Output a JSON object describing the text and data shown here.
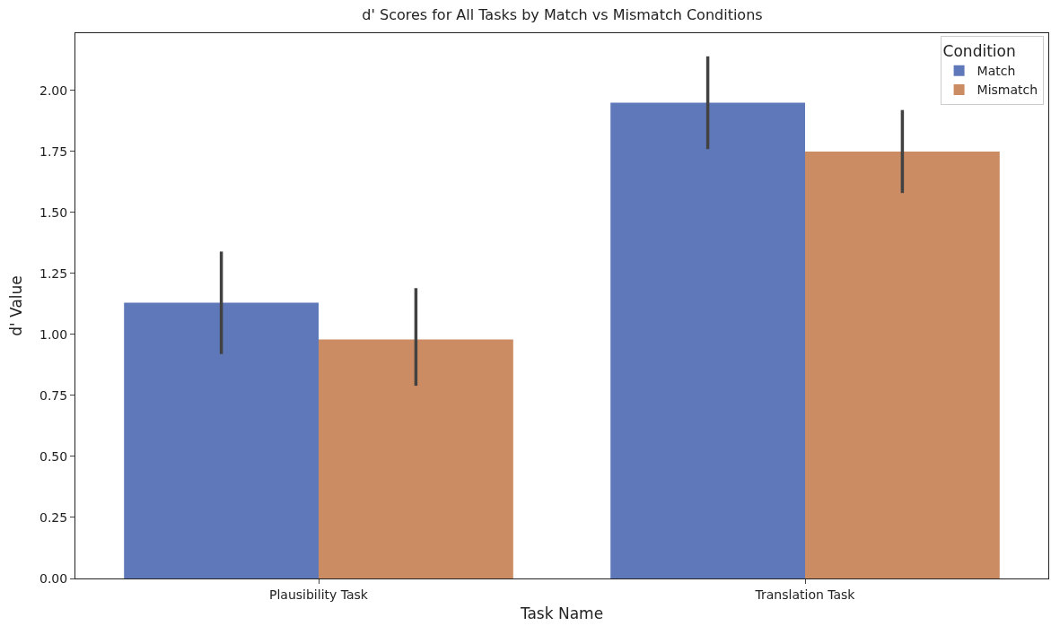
{
  "chart_data": {
    "type": "bar",
    "title": "d' Scores for All Tasks by Match vs Mismatch Conditions",
    "xlabel": "Task Name",
    "ylabel": "d' Value",
    "legend_title": "Condition",
    "categories": [
      "Plausibility Task",
      "Translation Task"
    ],
    "series": [
      {
        "name": "Match",
        "color": "#5f78ba",
        "values": [
          1.13,
          1.95
        ],
        "errors": [
          [
            0.92,
            1.34
          ],
          [
            1.76,
            2.14
          ]
        ]
      },
      {
        "name": "Mismatch",
        "color": "#cc8c63",
        "values": [
          0.98,
          1.75
        ],
        "errors": [
          [
            0.79,
            1.19
          ],
          [
            1.58,
            1.92
          ]
        ]
      }
    ],
    "ylim": [
      0,
      2.235
    ],
    "yticks": [
      {
        "value": 0,
        "label": "0.00"
      },
      {
        "value": 0.25,
        "label": "0.25"
      },
      {
        "value": 0.5,
        "label": "0.50"
      },
      {
        "value": 0.75,
        "label": "0.75"
      },
      {
        "value": 1,
        "label": "1.00"
      },
      {
        "value": 1.25,
        "label": "1.25"
      },
      {
        "value": 1.5,
        "label": "1.50"
      },
      {
        "value": 1.75,
        "label": "1.75"
      },
      {
        "value": 2,
        "label": "2.00"
      }
    ],
    "legend": "top right"
  }
}
